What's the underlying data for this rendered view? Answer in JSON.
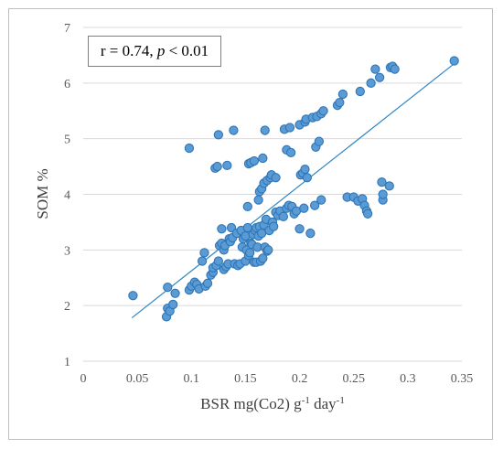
{
  "chart_data": {
    "type": "scatter",
    "title": "",
    "xlabel": {
      "main": "BSR mg(Co2) g",
      "sup1": "-1",
      "mid": " day",
      "sup2": "-1"
    },
    "ylabel": "SOM %",
    "xlim": [
      0,
      0.35
    ],
    "ylim": [
      1,
      7
    ],
    "x_ticks": [
      "0",
      "0.05",
      "0.1",
      "0.15",
      "0.2",
      "0.25",
      "0.3",
      "0.35"
    ],
    "y_ticks": [
      "1",
      "2",
      "3",
      "4",
      "5",
      "6",
      "7"
    ],
    "grid": "horizontal",
    "annotation": {
      "prefix": "r = 0.74, ",
      "italic": "p",
      "suffix": " < 0.01"
    },
    "marker_color": "#5b9bd5",
    "marker_edge": "#2e75b6",
    "trendline_color": "#2e86c1",
    "trendline": {
      "x": [
        0.045,
        0.343
      ],
      "y": [
        1.78,
        6.35
      ]
    },
    "points": [
      [
        0.046,
        2.18
      ],
      [
        0.077,
        1.8
      ],
      [
        0.078,
        2.33
      ],
      [
        0.078,
        1.95
      ],
      [
        0.08,
        1.9
      ],
      [
        0.083,
        2.02
      ],
      [
        0.085,
        2.22
      ],
      [
        0.098,
        4.83
      ],
      [
        0.098,
        2.28
      ],
      [
        0.1,
        2.35
      ],
      [
        0.103,
        2.42
      ],
      [
        0.105,
        2.38
      ],
      [
        0.107,
        2.3
      ],
      [
        0.11,
        2.8
      ],
      [
        0.112,
        2.95
      ],
      [
        0.113,
        2.35
      ],
      [
        0.115,
        2.4
      ],
      [
        0.118,
        2.55
      ],
      [
        0.12,
        2.6
      ],
      [
        0.12,
        2.68
      ],
      [
        0.122,
        4.47
      ],
      [
        0.123,
        2.72
      ],
      [
        0.124,
        4.5
      ],
      [
        0.125,
        2.8
      ],
      [
        0.125,
        5.07
      ],
      [
        0.126,
        3.08
      ],
      [
        0.128,
        3.12
      ],
      [
        0.128,
        3.38
      ],
      [
        0.13,
        2.65
      ],
      [
        0.13,
        3.0
      ],
      [
        0.131,
        3.08
      ],
      [
        0.132,
        2.7
      ],
      [
        0.133,
        4.52
      ],
      [
        0.134,
        2.75
      ],
      [
        0.135,
        3.2
      ],
      [
        0.136,
        3.15
      ],
      [
        0.137,
        3.4
      ],
      [
        0.138,
        3.22
      ],
      [
        0.139,
        5.15
      ],
      [
        0.14,
        2.75
      ],
      [
        0.142,
        3.3
      ],
      [
        0.143,
        2.72
      ],
      [
        0.145,
        2.75
      ],
      [
        0.146,
        3.35
      ],
      [
        0.147,
        3.05
      ],
      [
        0.148,
        3.2
      ],
      [
        0.15,
        3.25
      ],
      [
        0.15,
        2.8
      ],
      [
        0.151,
        3.0
      ],
      [
        0.152,
        3.4
      ],
      [
        0.152,
        3.78
      ],
      [
        0.153,
        2.9
      ],
      [
        0.153,
        4.55
      ],
      [
        0.154,
        2.95
      ],
      [
        0.155,
        3.12
      ],
      [
        0.155,
        4.57
      ],
      [
        0.156,
        3.1
      ],
      [
        0.157,
        3.28
      ],
      [
        0.158,
        2.78
      ],
      [
        0.158,
        4.6
      ],
      [
        0.159,
        3.35
      ],
      [
        0.16,
        3.4
      ],
      [
        0.16,
        2.78
      ],
      [
        0.161,
        3.05
      ],
      [
        0.162,
        3.25
      ],
      [
        0.162,
        3.9
      ],
      [
        0.163,
        3.42
      ],
      [
        0.163,
        4.05
      ],
      [
        0.164,
        2.8
      ],
      [
        0.165,
        3.3
      ],
      [
        0.165,
        4.1
      ],
      [
        0.166,
        4.65
      ],
      [
        0.166,
        2.85
      ],
      [
        0.167,
        3.45
      ],
      [
        0.167,
        4.2
      ],
      [
        0.168,
        3.05
      ],
      [
        0.168,
        5.15
      ],
      [
        0.169,
        3.55
      ],
      [
        0.17,
        2.98
      ],
      [
        0.17,
        4.25
      ],
      [
        0.171,
        3.0
      ],
      [
        0.172,
        3.35
      ],
      [
        0.173,
        4.3
      ],
      [
        0.174,
        4.35
      ],
      [
        0.175,
        3.5
      ],
      [
        0.176,
        3.42
      ],
      [
        0.178,
        3.68
      ],
      [
        0.178,
        4.3
      ],
      [
        0.18,
        3.62
      ],
      [
        0.182,
        3.7
      ],
      [
        0.185,
        3.6
      ],
      [
        0.186,
        5.17
      ],
      [
        0.188,
        3.75
      ],
      [
        0.188,
        4.8
      ],
      [
        0.19,
        3.8
      ],
      [
        0.191,
        5.2
      ],
      [
        0.192,
        4.75
      ],
      [
        0.193,
        3.78
      ],
      [
        0.195,
        3.65
      ],
      [
        0.197,
        3.7
      ],
      [
        0.2,
        3.38
      ],
      [
        0.2,
        5.25
      ],
      [
        0.201,
        4.35
      ],
      [
        0.203,
        4.38
      ],
      [
        0.204,
        3.75
      ],
      [
        0.205,
        4.45
      ],
      [
        0.205,
        5.3
      ],
      [
        0.206,
        5.35
      ],
      [
        0.207,
        4.3
      ],
      [
        0.21,
        3.3
      ],
      [
        0.212,
        5.38
      ],
      [
        0.214,
        3.8
      ],
      [
        0.215,
        4.85
      ],
      [
        0.216,
        5.4
      ],
      [
        0.218,
        4.95
      ],
      [
        0.22,
        5.45
      ],
      [
        0.22,
        3.9
      ],
      [
        0.222,
        5.5
      ],
      [
        0.235,
        5.6
      ],
      [
        0.237,
        5.65
      ],
      [
        0.24,
        5.8
      ],
      [
        0.244,
        3.95
      ],
      [
        0.25,
        3.95
      ],
      [
        0.254,
        3.88
      ],
      [
        0.256,
        5.85
      ],
      [
        0.258,
        3.92
      ],
      [
        0.26,
        3.8
      ],
      [
        0.262,
        3.7
      ],
      [
        0.263,
        3.65
      ],
      [
        0.266,
        6.0
      ],
      [
        0.27,
        6.25
      ],
      [
        0.274,
        6.1
      ],
      [
        0.276,
        4.22
      ],
      [
        0.277,
        3.9
      ],
      [
        0.277,
        4.0
      ],
      [
        0.283,
        4.15
      ],
      [
        0.284,
        6.28
      ],
      [
        0.286,
        6.3
      ],
      [
        0.288,
        6.25
      ],
      [
        0.343,
        6.4
      ]
    ]
  }
}
